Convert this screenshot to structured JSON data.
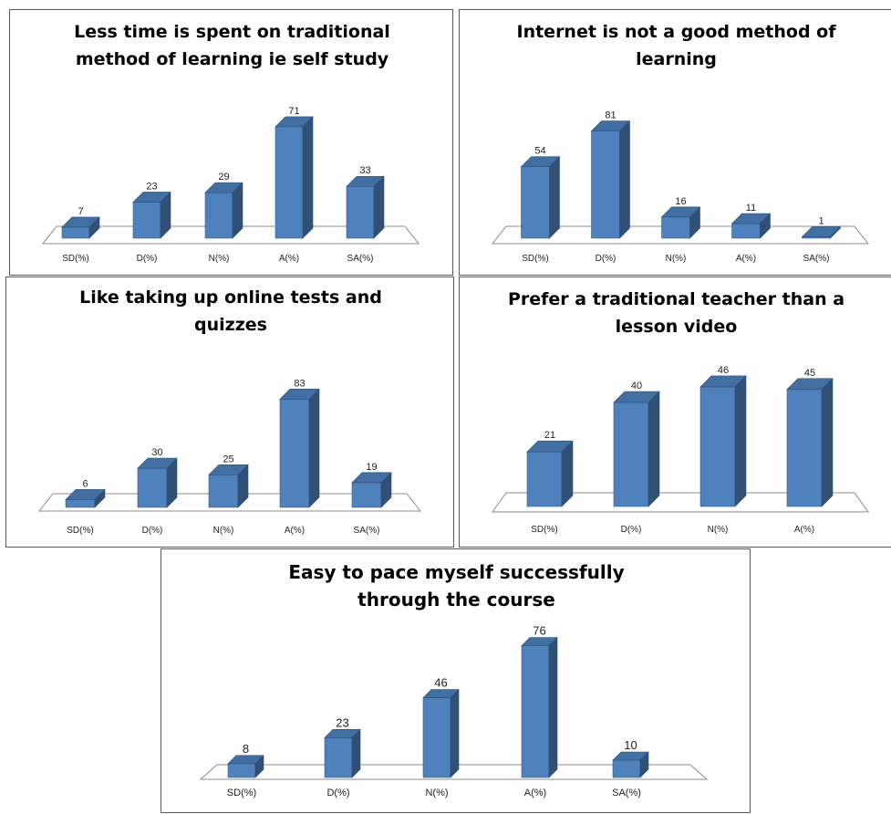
{
  "chart_data": [
    {
      "type": "bar",
      "title": "Less time is spent on traditional method of learning ie self study",
      "title_lines": [
        "Less time is spent on traditional",
        "method of learning ie self study"
      ],
      "categories": [
        "SD(%)",
        "D(%)",
        "N(%)",
        "A(%)",
        "SA(%)"
      ],
      "values": [
        7,
        23,
        29,
        71,
        33
      ],
      "data_labels": [
        "7",
        "23",
        "29",
        "71",
        "33"
      ],
      "style": "3d-column",
      "bar_color": "#4f81bd"
    },
    {
      "type": "bar",
      "title": "Internet is not a good method of learning",
      "title_lines": [
        "Internet is not a good method of",
        "learning"
      ],
      "categories": [
        "SD(%)",
        "D(%)",
        "N(%)",
        "A(%)",
        "SA(%)"
      ],
      "values": [
        54,
        81,
        16,
        11,
        1
      ],
      "data_labels": [
        "54",
        "81",
        "16",
        "11",
        "1"
      ],
      "style": "3d-column",
      "bar_color": "#4f81bd"
    },
    {
      "type": "bar",
      "title": "Like taking up online tests and quizzes",
      "title_lines": [
        "Like taking up online tests and",
        "quizzes"
      ],
      "categories": [
        "SD(%)",
        "D(%)",
        "N(%)",
        "A(%)",
        "SA(%)"
      ],
      "values": [
        6,
        30,
        25,
        83,
        19
      ],
      "data_labels": [
        "6",
        "30",
        "25",
        "83",
        "19"
      ],
      "style": "3d-column",
      "bar_color": "#4f81bd"
    },
    {
      "type": "bar",
      "title": "Prefer a traditional teacher than a lesson video",
      "title_lines": [
        "Prefer a traditional teacher than a",
        "lesson video"
      ],
      "categories": [
        "SD(%)",
        "D(%)",
        "N(%)",
        "A(%)"
      ],
      "values": [
        21,
        40,
        46,
        45
      ],
      "data_labels": [
        "21",
        "40",
        "46",
        "45"
      ],
      "style": "3d-column",
      "bar_color": "#4f81bd"
    },
    {
      "type": "bar",
      "title": "Easy to pace myself successfully through the course",
      "title_lines": [
        "Easy to pace myself successfully",
        "through the course"
      ],
      "categories": [
        "SD(%)",
        "D(%)",
        "N(%)",
        "A(%)",
        "SA(%)"
      ],
      "values": [
        8,
        23,
        46,
        76,
        10
      ],
      "data_labels": [
        "8",
        "23",
        "46",
        "76",
        "10"
      ],
      "style": "3d-column",
      "bar_color": "#4f81bd"
    }
  ]
}
